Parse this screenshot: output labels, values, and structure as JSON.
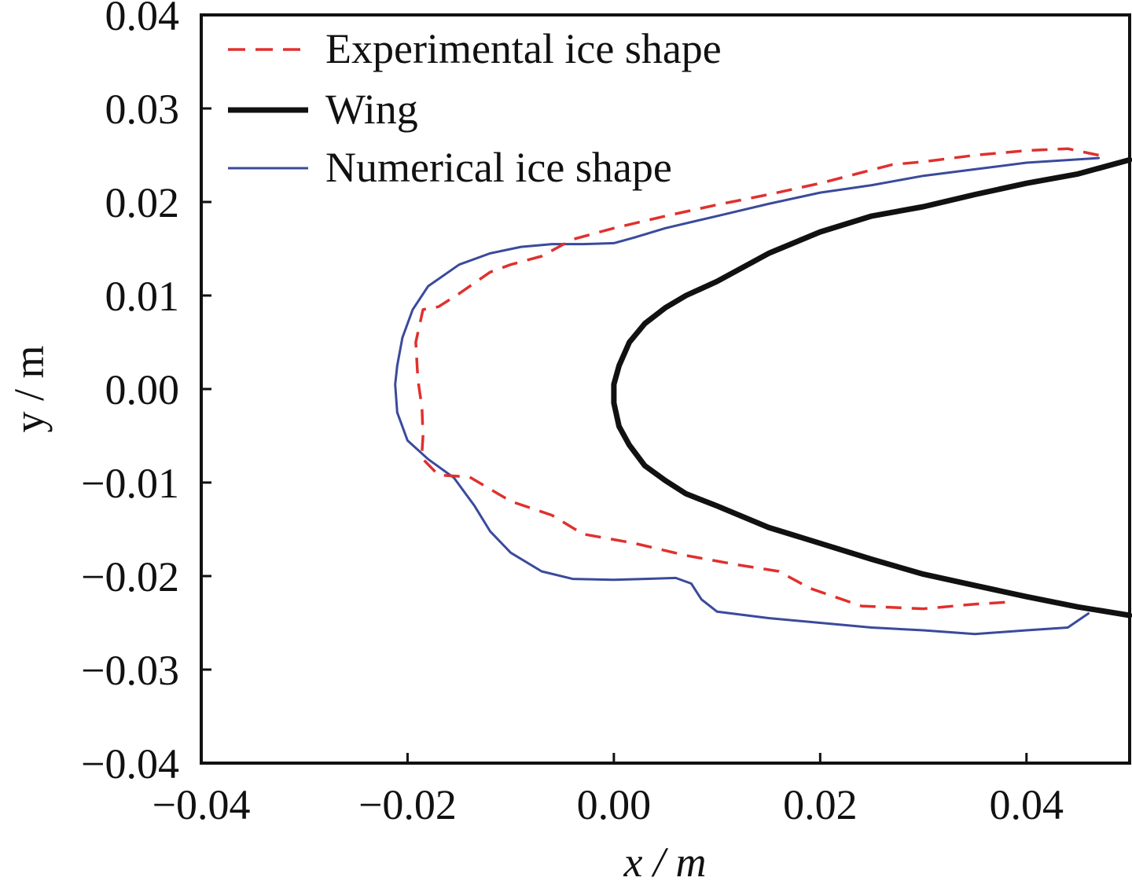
{
  "chart_data": {
    "type": "line",
    "xlabel": "x / m",
    "ylabel": "y / m",
    "xlim": [
      -0.04,
      0.05
    ],
    "ylim": [
      -0.04,
      0.04
    ],
    "x_ticks": [
      {
        "value": -0.04,
        "label": "−0.04"
      },
      {
        "value": -0.02,
        "label": "−0.02"
      },
      {
        "value": 0.0,
        "label": "0.00"
      },
      {
        "value": 0.02,
        "label": "0.02"
      },
      {
        "value": 0.04,
        "label": "0.04"
      }
    ],
    "y_ticks": [
      {
        "value": 0.04,
        "label": "0.04"
      },
      {
        "value": 0.03,
        "label": "0.03"
      },
      {
        "value": 0.02,
        "label": "0.02"
      },
      {
        "value": 0.01,
        "label": "0.01"
      },
      {
        "value": 0.0,
        "label": "0.00"
      },
      {
        "value": -0.01,
        "label": "−0.01"
      },
      {
        "value": -0.02,
        "label": "−0.02"
      },
      {
        "value": -0.03,
        "label": "−0.03"
      },
      {
        "value": -0.04,
        "label": "−0.04"
      }
    ],
    "grid": false,
    "legend_position": "top-left",
    "series": [
      {
        "name": "Experimental ice shape",
        "color": "#e0302e",
        "style": "dashed",
        "x": [
          0.047,
          0.044,
          0.04,
          0.035,
          0.03,
          0.027,
          0.02,
          0.015,
          0.01,
          0.005,
          0.0,
          -0.004,
          -0.007,
          -0.01,
          -0.012,
          -0.015,
          -0.017,
          -0.0185,
          -0.0192,
          -0.019,
          -0.0186,
          -0.0185,
          -0.0186,
          -0.0185,
          -0.017,
          -0.014,
          -0.012,
          -0.01,
          -0.006,
          -0.003,
          0.002,
          0.007,
          0.012,
          0.016,
          0.019,
          0.024,
          0.03,
          0.035,
          0.038
        ],
        "y": [
          0.025,
          0.0257,
          0.0255,
          0.025,
          0.0243,
          0.024,
          0.022,
          0.0208,
          0.0197,
          0.0185,
          0.0172,
          0.016,
          0.0142,
          0.0133,
          0.0125,
          0.0102,
          0.0088,
          0.0085,
          0.005,
          0.001,
          -0.002,
          -0.005,
          -0.0068,
          -0.0075,
          -0.0092,
          -0.0094,
          -0.0107,
          -0.012,
          -0.0135,
          -0.0155,
          -0.0165,
          -0.0178,
          -0.0188,
          -0.0195,
          -0.0213,
          -0.0232,
          -0.0235,
          -0.023,
          -0.0228
        ]
      },
      {
        "name": "Wing",
        "color": "#111111",
        "style": "solid",
        "x": [
          0.05,
          0.045,
          0.04,
          0.035,
          0.03,
          0.025,
          0.02,
          0.015,
          0.01,
          0.007,
          0.005,
          0.003,
          0.0015,
          0.0005,
          0.0,
          0.0,
          0.0005,
          0.0015,
          0.003,
          0.005,
          0.007,
          0.01,
          0.015,
          0.02,
          0.025,
          0.03,
          0.035,
          0.04,
          0.045,
          0.05
        ],
        "y": [
          0.0245,
          0.023,
          0.022,
          0.0208,
          0.0195,
          0.0185,
          0.0168,
          0.0145,
          0.0115,
          0.01,
          0.0087,
          0.007,
          0.005,
          0.0025,
          0.0005,
          -0.0015,
          -0.004,
          -0.006,
          -0.0082,
          -0.0098,
          -0.0112,
          -0.0125,
          -0.0148,
          -0.0165,
          -0.0182,
          -0.0198,
          -0.021,
          -0.0222,
          -0.0233,
          -0.0242
        ]
      },
      {
        "name": "Numerical ice shape",
        "color": "#3a4a9c",
        "style": "solid",
        "x": [
          0.047,
          0.04,
          0.035,
          0.03,
          0.025,
          0.02,
          0.015,
          0.01,
          0.005,
          0.002,
          0.0,
          -0.003,
          -0.006,
          -0.009,
          -0.012,
          -0.015,
          -0.018,
          -0.0195,
          -0.0205,
          -0.021,
          -0.0212,
          -0.021,
          -0.02,
          -0.018,
          -0.0155,
          -0.0135,
          -0.012,
          -0.01,
          -0.007,
          -0.004,
          0.0,
          0.003,
          0.006,
          0.0075,
          0.0085,
          0.01,
          0.015,
          0.02,
          0.025,
          0.03,
          0.035,
          0.04,
          0.044,
          0.046
        ],
        "y": [
          0.0247,
          0.0242,
          0.0235,
          0.0228,
          0.0218,
          0.021,
          0.0198,
          0.0185,
          0.0172,
          0.0162,
          0.0156,
          0.0155,
          0.0155,
          0.0152,
          0.0145,
          0.0133,
          0.011,
          0.0085,
          0.0055,
          0.0025,
          0.0005,
          -0.0025,
          -0.0055,
          -0.0075,
          -0.0095,
          -0.0125,
          -0.0152,
          -0.0175,
          -0.0195,
          -0.0203,
          -0.0204,
          -0.0203,
          -0.0202,
          -0.0208,
          -0.0225,
          -0.0238,
          -0.0245,
          -0.025,
          -0.0255,
          -0.0258,
          -0.0262,
          -0.0258,
          -0.0255,
          -0.024
        ]
      }
    ]
  }
}
